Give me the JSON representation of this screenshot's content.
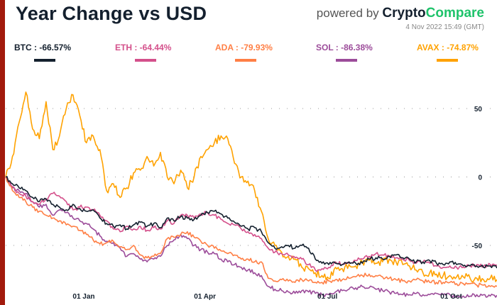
{
  "header": {
    "title": "Year Change vs USD",
    "powered_by": "powered by",
    "brand_part1": "Crypto",
    "brand_part2": "Compare",
    "timestamp": "4 Nov 2022 15:49 (GMT)"
  },
  "colors": {
    "accent_bar": "#a21a0c",
    "brand_green": "#1fc36b"
  },
  "chart_data": {
    "type": "line",
    "title": "Year Change vs USD",
    "xlabel": "",
    "ylabel": "",
    "ylim": [
      -78,
      72
    ],
    "y_ticks": [
      50,
      0,
      -50
    ],
    "y_tick_labels": [
      "50",
      "0",
      "-50"
    ],
    "x_tick_labels": [
      "01 Jan",
      "01 Apr",
      "01 Jul",
      "01 Oct"
    ],
    "x_tick_days": [
      58,
      148,
      239,
      331
    ],
    "x_range_days": [
      0,
      365
    ],
    "grid": "horizontal-dotted",
    "legend": "top",
    "x_days": [
      0,
      5,
      10,
      15,
      20,
      25,
      30,
      35,
      40,
      45,
      50,
      55,
      60,
      65,
      70,
      75,
      80,
      85,
      90,
      95,
      100,
      105,
      110,
      115,
      120,
      125,
      130,
      135,
      140,
      145,
      150,
      155,
      160,
      165,
      170,
      175,
      180,
      185,
      190,
      195,
      200,
      205,
      210,
      215,
      220,
      225,
      230,
      235,
      240,
      245,
      250,
      255,
      260,
      265,
      270,
      275,
      280,
      285,
      290,
      295,
      300,
      305,
      310,
      315,
      320,
      325,
      330,
      335,
      340,
      345,
      350,
      355,
      360,
      365
    ],
    "series": [
      {
        "name": "BTC",
        "label": "BTC : -66.57%",
        "change": -66.57,
        "color": "#14202e",
        "values": [
          0,
          -5,
          -8,
          -10,
          -15,
          -18,
          -16,
          -20,
          -22,
          -24,
          -20,
          -23,
          -25,
          -24,
          -30,
          -34,
          -36,
          -35,
          -38,
          -35,
          -33,
          -36,
          -34,
          -37,
          -30,
          -32,
          -29,
          -30,
          -31,
          -28,
          -26,
          -25,
          -27,
          -30,
          -33,
          -36,
          -38,
          -37,
          -40,
          -48,
          -52,
          -51,
          -50,
          -52,
          -50,
          -52,
          -60,
          -63,
          -64,
          -63,
          -64,
          -62,
          -63,
          -63,
          -60,
          -59,
          -60,
          -58,
          -57,
          -59,
          -60,
          -62,
          -62,
          -61,
          -63,
          -64,
          -62,
          -64,
          -65,
          -65,
          -65,
          -66,
          -65,
          -66.57
        ]
      },
      {
        "name": "ETH",
        "label": "ETH : -64.44%",
        "change": -64.44,
        "color": "#d4508b",
        "values": [
          0,
          -7,
          -12,
          -14,
          -18,
          -20,
          -16,
          -12,
          -14,
          -18,
          -24,
          -22,
          -22,
          -24,
          -28,
          -32,
          -38,
          -40,
          -36,
          -38,
          -36,
          -39,
          -37,
          -38,
          -32,
          -34,
          -28,
          -28,
          -30,
          -27,
          -26,
          -28,
          -31,
          -34,
          -35,
          -38,
          -40,
          -42,
          -45,
          -52,
          -55,
          -56,
          -57,
          -59,
          -60,
          -64,
          -68,
          -67,
          -66,
          -62,
          -64,
          -63,
          -61,
          -60,
          -58,
          -56,
          -57,
          -58,
          -59,
          -60,
          -61,
          -63,
          -62,
          -63,
          -65,
          -66,
          -65,
          -66,
          -66,
          -65,
          -64,
          -65,
          -64,
          -64.44
        ]
      },
      {
        "name": "ADA",
        "label": "ADA : -79.93%",
        "change": -79.93,
        "color": "#ff7f45",
        "values": [
          0,
          -10,
          -15,
          -18,
          -22,
          -25,
          -28,
          -30,
          -32,
          -35,
          -36,
          -39,
          -42,
          -46,
          -49,
          -48,
          -47,
          -51,
          -53,
          -50,
          -57,
          -59,
          -58,
          -56,
          -45,
          -44,
          -42,
          -40,
          -44,
          -47,
          -50,
          -52,
          -54,
          -56,
          -57,
          -60,
          -60,
          -62,
          -62,
          -74,
          -76,
          -75,
          -76,
          -77,
          -75,
          -76,
          -77,
          -77,
          -76,
          -75,
          -75,
          -74,
          -73,
          -72,
          -71,
          -72,
          -73,
          -74,
          -75,
          -76,
          -76,
          -75,
          -76,
          -77,
          -77,
          -77,
          -77,
          -78,
          -78,
          -78,
          -79,
          -79,
          -80,
          -79.93
        ]
      },
      {
        "name": "SOL",
        "label": "SOL : -86.38%",
        "change": -86.38,
        "color": "#9c4c9a",
        "values": [
          0,
          -8,
          -10,
          -12,
          -18,
          -22,
          -20,
          -28,
          -24,
          -26,
          -30,
          -32,
          -34,
          -38,
          -43,
          -47,
          -48,
          -52,
          -58,
          -56,
          -60,
          -62,
          -60,
          -58,
          -50,
          -46,
          -42,
          -45,
          -50,
          -53,
          -55,
          -56,
          -60,
          -62,
          -64,
          -66,
          -68,
          -70,
          -72,
          -80,
          -82,
          -83,
          -84,
          -85,
          -83,
          -84,
          -85,
          -86,
          -86,
          -84,
          -83,
          -82,
          -81,
          -80,
          -81,
          -82,
          -83,
          -84,
          -85,
          -86,
          -86,
          -85,
          -86,
          -86,
          -85,
          -86,
          -86,
          -87,
          -87,
          -87,
          -86,
          -86,
          -87,
          -86.38
        ]
      },
      {
        "name": "AVAX",
        "label": "AVAX : -74.87%",
        "change": -74.87,
        "color": "#ffa200",
        "values": [
          0,
          15,
          40,
          62,
          35,
          28,
          55,
          20,
          30,
          50,
          60,
          45,
          25,
          30,
          20,
          -10,
          -5,
          -15,
          -8,
          3,
          5,
          15,
          8,
          18,
          0,
          -5,
          5,
          -8,
          0,
          15,
          20,
          25,
          30,
          28,
          10,
          0,
          -3,
          -10,
          -25,
          -45,
          -50,
          -55,
          -58,
          -60,
          -66,
          -67,
          -70,
          -72,
          -74,
          -66,
          -67,
          -64,
          -65,
          -62,
          -61,
          -63,
          -62,
          -60,
          -62,
          -64,
          -65,
          -68,
          -70,
          -70,
          -71,
          -72,
          -72,
          -73,
          -73,
          -74,
          -74,
          -75,
          -74,
          -74.87
        ]
      }
    ]
  }
}
